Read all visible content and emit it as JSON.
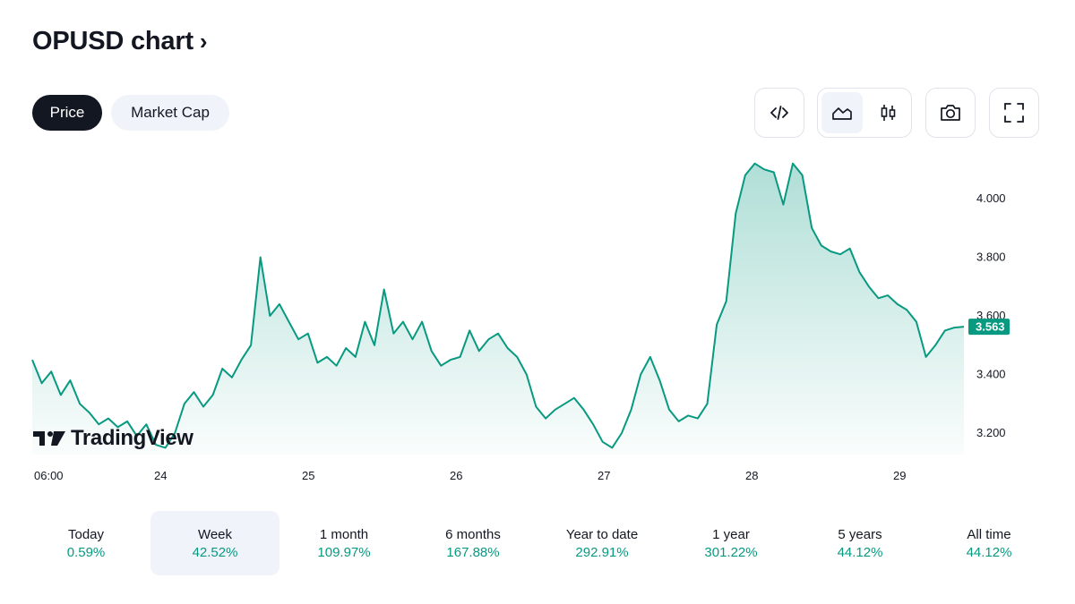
{
  "header": {
    "title": "OPUSD chart",
    "chevron": "›"
  },
  "tabs": [
    {
      "label": "Price",
      "active": true
    },
    {
      "label": "Market Cap",
      "active": false
    }
  ],
  "toolbar": {
    "embed_icon": "code-embed-icon",
    "area_chart_icon": "area-chart-icon",
    "candles_icon": "candlestick-icon",
    "snapshot_icon": "camera-icon",
    "fullscreen_icon": "fullscreen-icon",
    "active_style": "area"
  },
  "watermark": {
    "text": "TradingView"
  },
  "colors": {
    "line": "#089981",
    "fill_top": "#bfe8dc",
    "positive": "#089981",
    "dark": "#131722",
    "pill_bg": "#f0f3fa"
  },
  "chart_data": {
    "type": "area",
    "symbol": "OPUSD",
    "x_labels": [
      "06:00",
      "24",
      "25",
      "26",
      "27",
      "28",
      "29"
    ],
    "y_ticks": [
      "4.000",
      "3.800",
      "3.600",
      "3.400",
      "3.200"
    ],
    "y_tick_values": [
      4.0,
      3.8,
      3.6,
      3.4,
      3.2
    ],
    "ylim": [
      3.1,
      4.18
    ],
    "last_price": 3.563,
    "last_price_label": "3.563",
    "grid": false,
    "series": [
      {
        "values": [
          3.45,
          3.37,
          3.41,
          3.33,
          3.38,
          3.3,
          3.27,
          3.23,
          3.25,
          3.22,
          3.24,
          3.19,
          3.23,
          3.16,
          3.15,
          3.2,
          3.3,
          3.34,
          3.29,
          3.33,
          3.42,
          3.39,
          3.45,
          3.5,
          3.8,
          3.6,
          3.64,
          3.58,
          3.52,
          3.54,
          3.44,
          3.46,
          3.43,
          3.49,
          3.46,
          3.58,
          3.5,
          3.69,
          3.54,
          3.58,
          3.52,
          3.58,
          3.48,
          3.43,
          3.45,
          3.46,
          3.55,
          3.48,
          3.52,
          3.54,
          3.49,
          3.46,
          3.4,
          3.29,
          3.25,
          3.28,
          3.3,
          3.32,
          3.28,
          3.23,
          3.17,
          3.15,
          3.2,
          3.28,
          3.4,
          3.46,
          3.38,
          3.28,
          3.24,
          3.26,
          3.25,
          3.3,
          3.57,
          3.65,
          3.95,
          4.08,
          4.12,
          4.1,
          4.09,
          3.98,
          4.12,
          4.08,
          3.9,
          3.84,
          3.82,
          3.81,
          3.83,
          3.75,
          3.7,
          3.66,
          3.67,
          3.64,
          3.62,
          3.58,
          3.46,
          3.5,
          3.55,
          3.56,
          3.563
        ]
      }
    ]
  },
  "periods": [
    {
      "label": "Today",
      "value": "0.59%"
    },
    {
      "label": "Week",
      "value": "42.52%",
      "active": true
    },
    {
      "label": "1 month",
      "value": "109.97%"
    },
    {
      "label": "6 months",
      "value": "167.88%"
    },
    {
      "label": "Year to date",
      "value": "292.91%"
    },
    {
      "label": "1 year",
      "value": "301.22%"
    },
    {
      "label": "5 years",
      "value": "44.12%"
    },
    {
      "label": "All time",
      "value": "44.12%"
    }
  ]
}
